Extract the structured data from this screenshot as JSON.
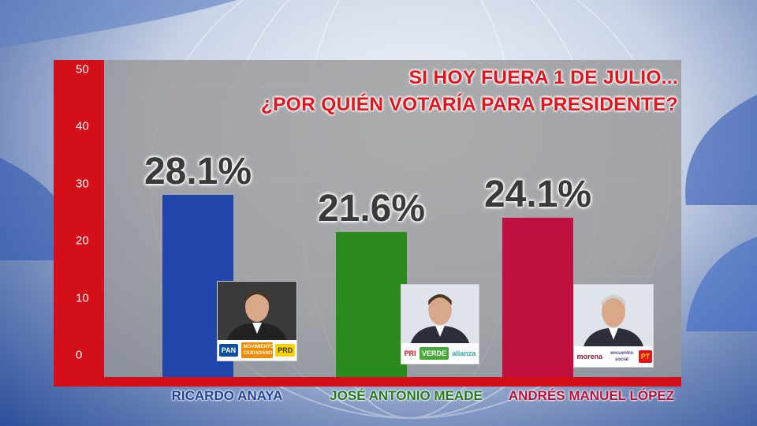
{
  "chart_data": {
    "type": "bar",
    "title_lines": [
      "SI HOY FUERA 1 DE JULIO...",
      "¿POR QUIÉN VOTARÍA PARA PRESIDENTE?"
    ],
    "categories": [
      "RICARDO ANAYA",
      "JOSÉ ANTONIO MEADE",
      "ANDRÉS MANUEL LÓPEZ"
    ],
    "values": [
      28.1,
      21.6,
      24.1
    ],
    "data_labels": [
      "28.1%",
      "21.6%",
      "24.1%"
    ],
    "ylim": [
      0,
      50
    ],
    "yticks": [
      0,
      10,
      20,
      30,
      40,
      50
    ],
    "ytick_labels": [
      "0",
      "10",
      "20",
      "30",
      "40",
      "50"
    ],
    "grid": false,
    "legend": "none",
    "colors": [
      "#1f46a8",
      "#2b8a1e",
      "#c0103f"
    ],
    "label_colors": [
      "#1f3f9e",
      "#237a1a",
      "#b8103a"
    ]
  },
  "candidates": [
    {
      "photo_icon": "portrait-ricardo-anaya",
      "party_logos": [
        "PAN",
        "MOVIMIENTO CIUDADANO",
        "PRD"
      ]
    },
    {
      "photo_icon": "portrait-jose-antonio-meade",
      "party_logos": [
        "PRI",
        "VERDE",
        "alianza"
      ]
    },
    {
      "photo_icon": "portrait-andres-manuel-lopez",
      "party_logos": [
        "morena",
        "encuentro social",
        "PT"
      ]
    }
  ]
}
